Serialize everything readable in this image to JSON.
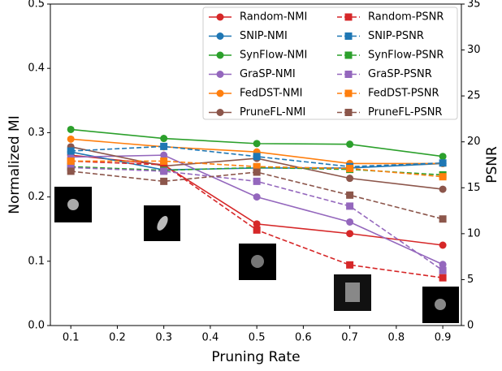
{
  "chart_data": {
    "type": "line",
    "x_label": "Pruning Rate",
    "y_label": "Normalized MI",
    "y2_label": "PSNR",
    "x": [
      0.1,
      0.3,
      0.5,
      0.7,
      0.9
    ],
    "xlim": [
      0.056,
      0.94
    ],
    "xticks": [
      0.1,
      0.2,
      0.3,
      0.4,
      0.5,
      0.6,
      0.7,
      0.8,
      0.9
    ],
    "ylim": [
      0,
      0.5
    ],
    "yticks": [
      {
        "value": 0,
        "label": "0.0"
      },
      0.1,
      0.2,
      0.3,
      0.4,
      0.5
    ],
    "y2lim": [
      0,
      35
    ],
    "y2ticks": [
      0,
      5,
      10,
      15,
      20,
      25,
      30,
      35
    ],
    "legend": "upper right",
    "series": [
      {
        "name": "Random-NMI",
        "color": "#d62728",
        "linestyle": "solid",
        "marker": "circle",
        "values": [
          0.265,
          0.25,
          0.158,
          0.143,
          0.125
        ]
      },
      {
        "name": "SNIP-NMI",
        "color": "#1f77b4",
        "linestyle": "solid",
        "marker": "circle",
        "values": [
          0.27,
          0.242,
          0.245,
          0.245,
          0.252
        ]
      },
      {
        "name": "SynFlow-NMI",
        "color": "#2ca02c",
        "linestyle": "solid",
        "marker": "circle",
        "values": [
          0.305,
          0.291,
          0.283,
          0.282,
          0.263
        ]
      },
      {
        "name": "GraSP-NMI",
        "color": "#9467bd",
        "linestyle": "solid",
        "marker": "circle",
        "values": [
          0.262,
          0.265,
          0.2,
          0.161,
          0.095
        ]
      },
      {
        "name": "FedDST-NMI",
        "color": "#ff7f0e",
        "linestyle": "solid",
        "marker": "circle",
        "values": [
          0.29,
          0.278,
          0.27,
          0.252,
          0.252
        ]
      },
      {
        "name": "PruneFL-NMI",
        "color": "#8c564b",
        "linestyle": "solid",
        "marker": "circle",
        "values": [
          0.278,
          0.248,
          0.26,
          0.229,
          0.212
        ]
      },
      {
        "name": "Random-PSNR",
        "color": "#d62728",
        "linestyle": "dashed",
        "marker": "square",
        "axis": "y2",
        "values": [
          17.9,
          17.5,
          10.4,
          6.6,
          5.2
        ]
      },
      {
        "name": "SNIP-PSNR",
        "color": "#1f77b4",
        "linestyle": "dashed",
        "marker": "square",
        "axis": "y2",
        "values": [
          19.0,
          19.5,
          18.4,
          17.3,
          17.7
        ]
      },
      {
        "name": "SynFlow-PSNR",
        "color": "#2ca02c",
        "linestyle": "dashed",
        "marker": "square",
        "axis": "y2",
        "values": [
          17.3,
          16.9,
          17.2,
          17.0,
          16.4
        ]
      },
      {
        "name": "GraSP-PSNR",
        "color": "#9467bd",
        "linestyle": "dashed",
        "marker": "square",
        "axis": "y2",
        "values": [
          17.2,
          16.8,
          15.7,
          13.0,
          6.0
        ]
      },
      {
        "name": "FedDST-PSNR",
        "color": "#ff7f0e",
        "linestyle": "dashed",
        "marker": "square",
        "axis": "y2",
        "values": [
          17.9,
          17.9,
          17.3,
          17.1,
          16.2
        ]
      },
      {
        "name": "PruneFL-PSNR",
        "color": "#8c564b",
        "linestyle": "dashed",
        "marker": "square",
        "axis": "y2",
        "values": [
          16.8,
          15.7,
          16.7,
          14.2,
          11.6
        ]
      }
    ]
  }
}
